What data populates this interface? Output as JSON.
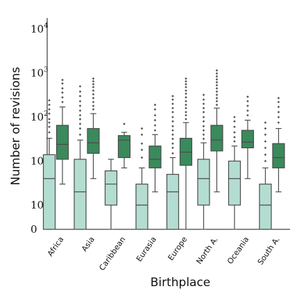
{
  "chart_data": {
    "type": "box",
    "title": "",
    "xlabel": "Birthplace",
    "ylabel": "Number of revisions",
    "yscale": "symlog",
    "ylim": [
      0,
      10000
    ],
    "y_ticks": [
      {
        "value": 0,
        "base": "0",
        "exp": ""
      },
      {
        "value": 1,
        "base": "10",
        "exp": "0"
      },
      {
        "value": 10,
        "base": "10",
        "exp": "1"
      },
      {
        "value": 100,
        "base": "10",
        "exp": "2"
      },
      {
        "value": 1000,
        "base": "10",
        "exp": "3"
      },
      {
        "value": 10000,
        "base": "10",
        "exp": "4"
      }
    ],
    "categories": [
      "Africa",
      "Asia",
      "Caribbean",
      "Eurasia",
      "Europe",
      "North A.",
      "Oceania",
      "South A."
    ],
    "series": [
      {
        "color": "#b4ddd2",
        "boxes": [
          {
            "whislo": 0,
            "q1": 0,
            "med": 4,
            "q3": 14,
            "whishi": 33,
            "fliers": [
              45,
              60,
              75,
              90,
              120,
              150,
              190,
              240
            ]
          },
          {
            "whislo": 0,
            "q1": 0,
            "med": 2,
            "q3": 11,
            "whishi": 30,
            "fliers": [
              40,
              55,
              70,
              90,
              110,
              140,
              180,
              230,
              300,
              380,
              500
            ]
          },
          {
            "whislo": 0,
            "q1": 1,
            "med": 3,
            "q3": 6,
            "whishi": 11,
            "fliers": []
          },
          {
            "whislo": 0,
            "q1": 0,
            "med": 1,
            "q3": 3,
            "whishi": 7,
            "fliers": [
              12,
              18,
              25,
              40,
              55
            ]
          },
          {
            "whislo": 0,
            "q1": 0,
            "med": 2,
            "q3": 5,
            "whishi": 12,
            "fliers": [
              15,
              20,
              25,
              32,
              40,
              50,
              62,
              80,
              100,
              130,
              160,
              200,
              250,
              300
            ]
          },
          {
            "whislo": 0,
            "q1": 1,
            "med": 4,
            "q3": 11,
            "whishi": 26,
            "fliers": [
              32,
              40,
              50,
              62,
              80,
              100,
              130,
              160,
              200,
              250,
              320
            ]
          },
          {
            "whislo": 0,
            "q1": 1,
            "med": 4,
            "q3": 10,
            "whishi": 22,
            "fliers": [
              28,
              35,
              45,
              60,
              80,
              100
            ]
          },
          {
            "whislo": 0,
            "q1": 0,
            "med": 1,
            "q3": 3,
            "whishi": 7,
            "fliers": [
              10,
              14,
              20,
              28,
              40,
              55,
              75
            ]
          }
        ]
      },
      {
        "color": "#3a8a5c",
        "boxes": [
          {
            "whislo": 3,
            "q1": 11,
            "med": 24,
            "q3": 65,
            "whishi": 170,
            "fliers": [
              220,
              280,
              360,
              450,
              580,
              700
            ]
          },
          {
            "whislo": 4,
            "q1": 15,
            "med": 26,
            "q3": 55,
            "whishi": 120,
            "fliers": [
              150,
              180,
              220,
              270,
              330,
              400,
              480,
              560,
              650,
              750
            ]
          },
          {
            "whislo": 7,
            "q1": 12,
            "med": 30,
            "q3": 38,
            "whishi": 45,
            "fliers": [
              70
            ]
          },
          {
            "whislo": 2,
            "q1": 7,
            "med": 11,
            "q3": 22,
            "whishi": 40,
            "fliers": [
              50,
              65,
              85,
              110,
              150,
              190
            ]
          },
          {
            "whislo": 0,
            "q1": 8,
            "med": 16,
            "q3": 33,
            "whishi": 75,
            "fliers": [
              90,
              110,
              130,
              160,
              190,
              230,
              280,
              340,
              400,
              480,
              560,
              650,
              750
            ]
          },
          {
            "whislo": 2,
            "q1": 17,
            "med": 30,
            "q3": 65,
            "whishi": 160,
            "fliers": [
              190,
              230,
              270,
              320,
              380,
              450,
              530,
              620,
              720,
              840,
              980,
              1150
            ]
          },
          {
            "whislo": 4,
            "q1": 20,
            "med": 27,
            "q3": 50,
            "whishi": 85,
            "fliers": [
              110,
              140,
              180,
              230,
              290
            ]
          },
          {
            "whislo": 2,
            "q1": 7,
            "med": 12,
            "q3": 25,
            "whishi": 55,
            "fliers": [
              75,
              100,
              130,
              170,
              220,
              270
            ]
          }
        ]
      }
    ],
    "grid": false
  }
}
